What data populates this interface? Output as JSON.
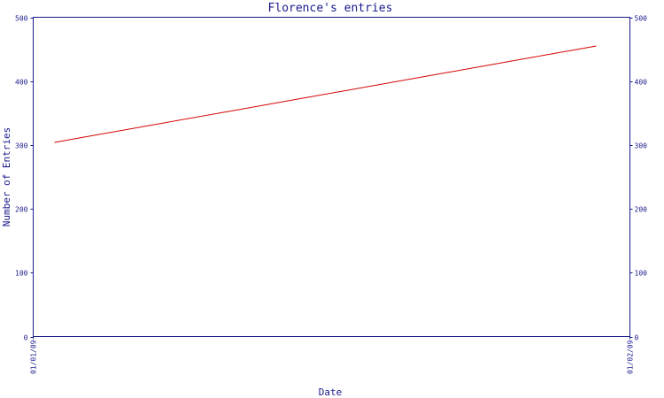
{
  "chart_data": {
    "type": "line",
    "title": "Florence's entries",
    "xlabel": "Date",
    "ylabel": "Number of Entries",
    "x_ticks": [
      "01/01/09",
      "01/02/09"
    ],
    "y_ticks": [
      0,
      100,
      200,
      300,
      400,
      500
    ],
    "ylim": [
      0,
      500
    ],
    "grid": false,
    "legend": "none",
    "series": [
      {
        "color": "#d40000",
        "points": [
          {
            "x": "01/01/09",
            "y": 304
          },
          {
            "x": "01/02/09",
            "y": 455
          }
        ]
      }
    ]
  }
}
